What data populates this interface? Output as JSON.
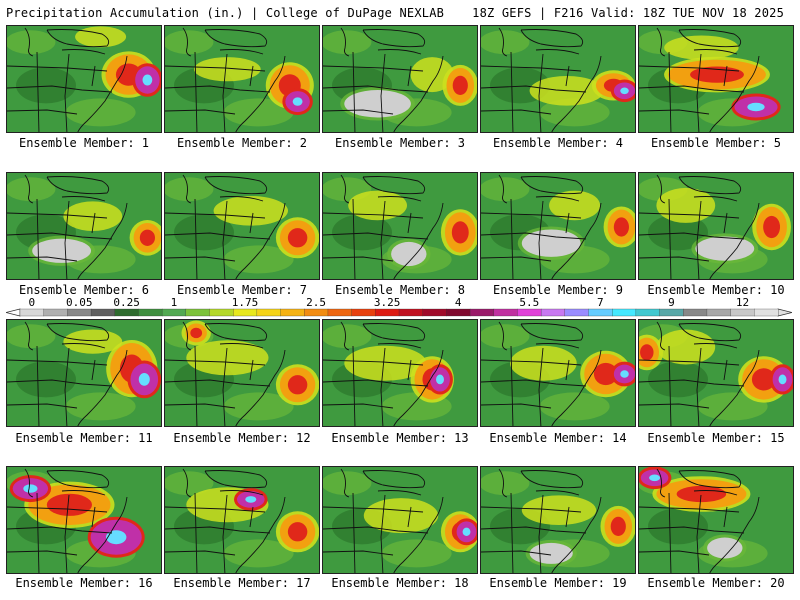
{
  "header": {
    "left": "Precipitation Accumulation (in.) | College of DuPage NEXLAB",
    "right": "18Z GEFS | F216 Valid: 18Z TUE NOV 18 2025"
  },
  "caption_prefix": "Ensemble Member:",
  "members": [
    {
      "id": 1,
      "label": "Ensemble Member: 1",
      "features": [
        [
          "wet",
          0.78,
          0.45,
          0.22,
          0.3
        ],
        [
          "heavy",
          0.9,
          0.5,
          0.08,
          0.18
        ],
        [
          "moist",
          0.6,
          0.1,
          0.25,
          0.12
        ]
      ]
    },
    {
      "id": 2,
      "label": "Ensemble Member: 2",
      "features": [
        [
          "wet",
          0.8,
          0.55,
          0.18,
          0.3
        ],
        [
          "heavy",
          0.85,
          0.7,
          0.08,
          0.12
        ],
        [
          "moist",
          0.4,
          0.4,
          0.35,
          0.15
        ]
      ]
    },
    {
      "id": 3,
      "label": "Ensemble Member: 3",
      "features": [
        [
          "dry",
          0.35,
          0.72,
          0.35,
          0.18
        ],
        [
          "moist",
          0.7,
          0.45,
          0.2,
          0.25
        ],
        [
          "wet",
          0.88,
          0.55,
          0.1,
          0.25
        ]
      ]
    },
    {
      "id": 4,
      "label": "Ensemble Member: 4",
      "features": [
        [
          "moist",
          0.55,
          0.6,
          0.4,
          0.2
        ],
        [
          "wet",
          0.85,
          0.55,
          0.15,
          0.15
        ],
        [
          "heavy",
          0.92,
          0.6,
          0.06,
          0.08
        ]
      ]
    },
    {
      "id": 5,
      "label": "Ensemble Member: 5",
      "features": [
        [
          "wet",
          0.5,
          0.45,
          0.55,
          0.2
        ],
        [
          "heavy",
          0.75,
          0.75,
          0.2,
          0.12
        ],
        [
          "moist",
          0.4,
          0.2,
          0.4,
          0.15
        ]
      ]
    },
    {
      "id": 6,
      "label": "Ensemble Member: 6",
      "features": [
        [
          "dry",
          0.35,
          0.72,
          0.3,
          0.15
        ],
        [
          "wet",
          0.9,
          0.6,
          0.1,
          0.2
        ],
        [
          "moist",
          0.55,
          0.4,
          0.3,
          0.2
        ]
      ]
    },
    {
      "id": 7,
      "label": "Ensemble Member: 7",
      "features": [
        [
          "moist",
          0.55,
          0.35,
          0.4,
          0.2
        ],
        [
          "wet",
          0.85,
          0.6,
          0.15,
          0.25
        ]
      ]
    },
    {
      "id": 8,
      "label": "Ensemble Member: 8",
      "features": [
        [
          "dry",
          0.55,
          0.75,
          0.15,
          0.15
        ],
        [
          "wet",
          0.88,
          0.55,
          0.12,
          0.3
        ],
        [
          "moist",
          0.35,
          0.3,
          0.3,
          0.2
        ]
      ]
    },
    {
      "id": 9,
      "label": "Ensemble Member: 9",
      "features": [
        [
          "dry",
          0.45,
          0.65,
          0.3,
          0.18
        ],
        [
          "wet",
          0.9,
          0.5,
          0.1,
          0.25
        ],
        [
          "moist",
          0.6,
          0.3,
          0.25,
          0.2
        ]
      ]
    },
    {
      "id": 10,
      "label": "Ensemble Member: 10",
      "features": [
        [
          "dry",
          0.55,
          0.7,
          0.3,
          0.15
        ],
        [
          "wet",
          0.85,
          0.5,
          0.12,
          0.3
        ],
        [
          "moist",
          0.3,
          0.3,
          0.3,
          0.25
        ]
      ]
    },
    {
      "id": 11,
      "label": "Ensemble Member: 11",
      "features": [
        [
          "wet",
          0.8,
          0.45,
          0.2,
          0.4
        ],
        [
          "heavy",
          0.88,
          0.55,
          0.1,
          0.22
        ],
        [
          "moist",
          0.55,
          0.2,
          0.3,
          0.15
        ]
      ]
    },
    {
      "id": 12,
      "label": "Ensemble Member: 12",
      "features": [
        [
          "moist",
          0.4,
          0.35,
          0.45,
          0.25
        ],
        [
          "wet",
          0.85,
          0.6,
          0.15,
          0.25
        ],
        [
          "wet",
          0.2,
          0.12,
          0.06,
          0.1
        ]
      ]
    },
    {
      "id": 13,
      "label": "Ensemble Member: 13",
      "features": [
        [
          "moist",
          0.4,
          0.4,
          0.45,
          0.25
        ],
        [
          "wet",
          0.7,
          0.55,
          0.15,
          0.3
        ],
        [
          "heavy",
          0.75,
          0.55,
          0.05,
          0.15
        ]
      ]
    },
    {
      "id": 14,
      "label": "Ensemble Member: 14",
      "features": [
        [
          "wet",
          0.8,
          0.5,
          0.2,
          0.3
        ],
        [
          "heavy",
          0.92,
          0.5,
          0.06,
          0.1
        ],
        [
          "moist",
          0.4,
          0.4,
          0.35,
          0.25
        ]
      ]
    },
    {
      "id": 15,
      "label": "Ensemble Member: 15",
      "features": [
        [
          "wet",
          0.8,
          0.55,
          0.2,
          0.3
        ],
        [
          "heavy",
          0.92,
          0.55,
          0.05,
          0.15
        ],
        [
          "moist",
          0.3,
          0.25,
          0.3,
          0.25
        ],
        [
          "wet",
          0.05,
          0.3,
          0.08,
          0.2
        ]
      ]
    },
    {
      "id": 16,
      "label": "Ensemble Member: 16",
      "features": [
        [
          "wet",
          0.4,
          0.35,
          0.45,
          0.3
        ],
        [
          "heavy",
          0.7,
          0.65,
          0.25,
          0.25
        ],
        [
          "heavy",
          0.15,
          0.2,
          0.15,
          0.12
        ]
      ]
    },
    {
      "id": 17,
      "label": "Ensemble Member: 17",
      "features": [
        [
          "moist",
          0.4,
          0.35,
          0.45,
          0.25
        ],
        [
          "wet",
          0.85,
          0.6,
          0.15,
          0.25
        ],
        [
          "heavy",
          0.55,
          0.3,
          0.1,
          0.08
        ]
      ]
    },
    {
      "id": 18,
      "label": "Ensemble Member: 18",
      "features": [
        [
          "moist",
          0.5,
          0.45,
          0.4,
          0.25
        ],
        [
          "wet",
          0.88,
          0.6,
          0.12,
          0.25
        ],
        [
          "heavy",
          0.92,
          0.6,
          0.05,
          0.12
        ]
      ]
    },
    {
      "id": 19,
      "label": "Ensemble Member: 19",
      "features": [
        [
          "dry",
          0.45,
          0.8,
          0.2,
          0.12
        ],
        [
          "moist",
          0.5,
          0.4,
          0.4,
          0.2
        ],
        [
          "wet",
          0.88,
          0.55,
          0.1,
          0.25
        ]
      ]
    },
    {
      "id": 20,
      "label": "Ensemble Member: 20",
      "features": [
        [
          "wet",
          0.4,
          0.25,
          0.5,
          0.2
        ],
        [
          "dry",
          0.55,
          0.75,
          0.15,
          0.12
        ],
        [
          "heavy",
          0.1,
          0.1,
          0.1,
          0.08
        ]
      ]
    }
  ],
  "colorbar": {
    "labels": [
      "0",
      "0.05",
      "0.25",
      "1",
      "1.75",
      "2.5",
      "3.25",
      "4",
      "5.5",
      "7",
      "9",
      "12"
    ],
    "colors": [
      "#d8d8d8",
      "#b0b0b0",
      "#888888",
      "#606060",
      "#2e6b2e",
      "#3f8f3f",
      "#52a952",
      "#7cc23a",
      "#b4d82a",
      "#e8e81e",
      "#f5d318",
      "#f5b214",
      "#f28c12",
      "#ee6610",
      "#e8400e",
      "#dd1a12",
      "#c01020",
      "#a00a2a",
      "#80082e",
      "#9a1a6a",
      "#c030a0",
      "#e040d8",
      "#c878f0",
      "#9a8cff",
      "#66ccff",
      "#44e8ff",
      "#40c8d0",
      "#58a8a8",
      "#888888",
      "#a8a8a8",
      "#c8c8c8",
      "#e0e0e0"
    ],
    "label_index": [
      0,
      2,
      4,
      6,
      9,
      12,
      15,
      18,
      21,
      24,
      27,
      30
    ]
  },
  "palette": {
    "base_green": "#3f9a3f",
    "dark_green": "#2e7a2e",
    "light_green": "#6ab83a",
    "moist": "#cce01e",
    "wet_orange": "#f2a010",
    "wet_red": "#e0281a",
    "heavy_magenta": "#c030a8",
    "core_cyan": "#66ddff",
    "dry_gray": "#cfcfcf",
    "border": "#111111"
  }
}
